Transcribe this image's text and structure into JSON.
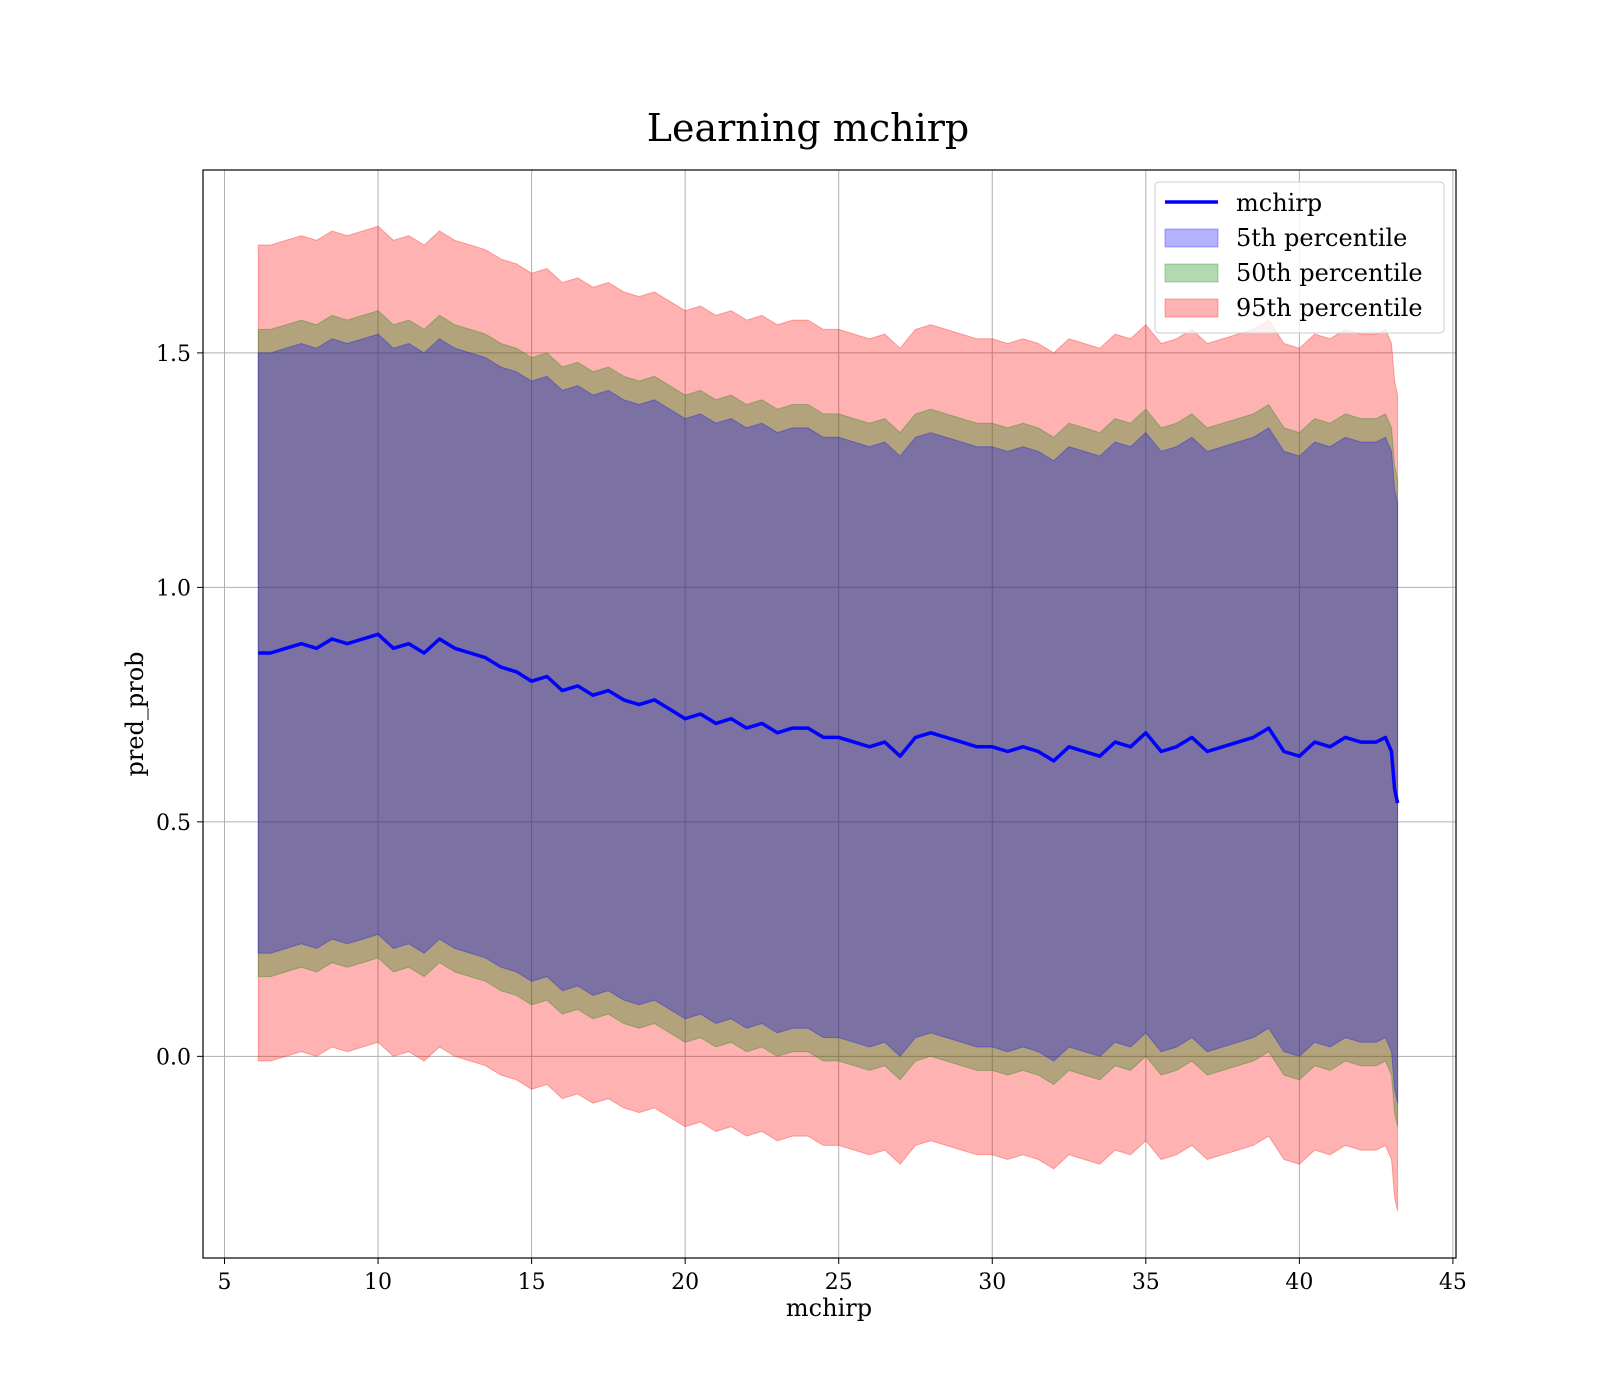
{
  "chart_data": {
    "type": "area",
    "title": "Learning mchirp",
    "xlabel": "mchirp",
    "ylabel": "pred_prob",
    "xlim": [
      4.3,
      45.1
    ],
    "ylim": [
      -0.43,
      1.89
    ],
    "xticks": [
      5,
      10,
      15,
      20,
      25,
      30,
      35,
      40,
      45
    ],
    "yticks": [
      0.0,
      0.5,
      1.0,
      1.5
    ],
    "ytick_labels": [
      "0.0",
      "0.5",
      "1.0",
      "1.5"
    ],
    "grid": true,
    "legend_position": "top-right",
    "colors": {
      "line": "#0000ff",
      "p5": "#0000ff",
      "p50": "#008000",
      "p95": "#ff0000"
    },
    "legend": [
      "mchirp",
      "5th percentile",
      "50th percentile",
      "95th percentile"
    ],
    "x": [
      6.1,
      6.5,
      7,
      7.5,
      8,
      8.5,
      9,
      9.5,
      10,
      10.5,
      11,
      11.5,
      12,
      12.5,
      13,
      13.5,
      14,
      14.5,
      15,
      15.5,
      16,
      16.5,
      17,
      17.5,
      18,
      18.5,
      19,
      19.5,
      20,
      20.5,
      21,
      21.5,
      22,
      22.5,
      23,
      23.5,
      24,
      24.5,
      25,
      25.5,
      26,
      26.5,
      27,
      27.5,
      28,
      28.5,
      29,
      29.5,
      30,
      30.5,
      31,
      31.5,
      32,
      32.5,
      33,
      33.5,
      34,
      34.5,
      35,
      35.5,
      36,
      36.5,
      37,
      37.5,
      38,
      38.5,
      39,
      39.5,
      40,
      40.5,
      41,
      41.5,
      42,
      42.5,
      42.8,
      43.0,
      43.1,
      43.2
    ],
    "series": [
      {
        "name": "mchirp",
        "values": [
          0.86,
          0.86,
          0.87,
          0.88,
          0.87,
          0.89,
          0.88,
          0.89,
          0.9,
          0.87,
          0.88,
          0.86,
          0.89,
          0.87,
          0.86,
          0.85,
          0.83,
          0.82,
          0.8,
          0.81,
          0.78,
          0.79,
          0.77,
          0.78,
          0.76,
          0.75,
          0.76,
          0.74,
          0.72,
          0.73,
          0.71,
          0.72,
          0.7,
          0.71,
          0.69,
          0.7,
          0.7,
          0.68,
          0.68,
          0.67,
          0.66,
          0.67,
          0.64,
          0.68,
          0.69,
          0.68,
          0.67,
          0.66,
          0.66,
          0.65,
          0.66,
          0.65,
          0.63,
          0.66,
          0.65,
          0.64,
          0.67,
          0.66,
          0.69,
          0.65,
          0.66,
          0.68,
          0.65,
          0.66,
          0.67,
          0.68,
          0.7,
          0.65,
          0.64,
          0.67,
          0.66,
          0.68,
          0.67,
          0.67,
          0.68,
          0.65,
          0.57,
          0.54
        ]
      },
      {
        "name": "5th percentile",
        "band_halfwidth": 0.64
      },
      {
        "name": "50th percentile",
        "band_halfwidth": 0.69
      },
      {
        "name": "95th percentile",
        "band_halfwidth": 0.87
      }
    ]
  }
}
